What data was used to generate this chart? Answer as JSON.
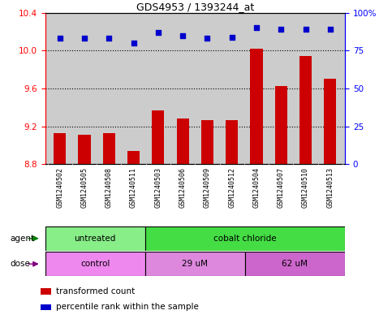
{
  "title": "GDS4953 / 1393244_at",
  "samples": [
    "GSM1240502",
    "GSM1240505",
    "GSM1240508",
    "GSM1240511",
    "GSM1240503",
    "GSM1240506",
    "GSM1240509",
    "GSM1240512",
    "GSM1240504",
    "GSM1240507",
    "GSM1240510",
    "GSM1240513"
  ],
  "bar_values": [
    9.13,
    9.11,
    9.13,
    8.94,
    9.37,
    9.28,
    9.27,
    9.27,
    10.02,
    9.63,
    9.94,
    9.7
  ],
  "dot_values_pct": [
    83,
    83,
    83,
    80,
    87,
    85,
    83,
    84,
    90,
    89,
    89,
    89
  ],
  "y_min": 8.8,
  "y_max": 10.4,
  "y_ticks": [
    8.8,
    9.2,
    9.6,
    10.0,
    10.4
  ],
  "y2_ticks": [
    0,
    25,
    50,
    75,
    100
  ],
  "y2_labels": [
    "0",
    "25",
    "50",
    "75",
    "100%"
  ],
  "bar_color": "#cc0000",
  "dot_color": "#0000cc",
  "bar_width": 0.5,
  "agent_groups": [
    {
      "label": "untreated",
      "start": 0,
      "end": 4,
      "color": "#88ee88"
    },
    {
      "label": "cobalt chloride",
      "start": 4,
      "end": 12,
      "color": "#44dd44"
    }
  ],
  "dose_groups": [
    {
      "label": "control",
      "start": 0,
      "end": 4,
      "color": "#ee88ee"
    },
    {
      "label": "29 uM",
      "start": 4,
      "end": 8,
      "color": "#dd88dd"
    },
    {
      "label": "62 uM",
      "start": 8,
      "end": 12,
      "color": "#cc66cc"
    }
  ],
  "legend_items": [
    {
      "color": "#cc0000",
      "label": "transformed count"
    },
    {
      "color": "#0000cc",
      "label": "percentile rank within the sample"
    }
  ],
  "row_label_agent": "agent",
  "row_label_dose": "dose",
  "bg_color": "#cccccc",
  "plot_bg": "#ffffff",
  "tick_label_bg": "#cccccc"
}
